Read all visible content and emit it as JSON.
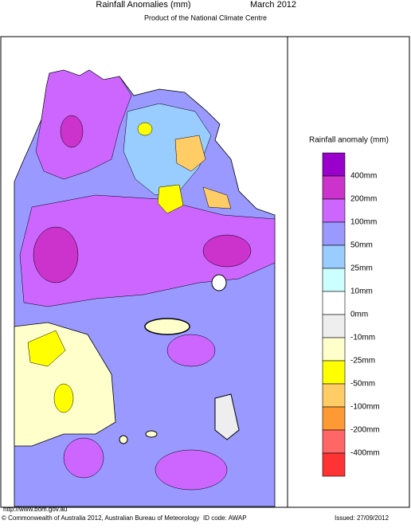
{
  "header": {
    "title": "Rainfall Anomalies (mm)",
    "period": "March 2012",
    "subtitle": "Product of the National Climate Centre"
  },
  "legend": {
    "title": "Rainfall anomaly (mm)",
    "colors": [
      "#9900cc",
      "#cc33cc",
      "#cc66ff",
      "#9999ff",
      "#99ccff",
      "#ccffff",
      "#ffffff",
      "#eeeeee",
      "#ffffcc",
      "#ffff00",
      "#ffcc66",
      "#ff9933",
      "#ff6666",
      "#ff3333"
    ],
    "labels": [
      "400mm",
      "200mm",
      "100mm",
      "50mm",
      "25mm",
      "10mm",
      "0mm",
      "-10mm",
      "-25mm",
      "-50mm",
      "-100mm",
      "-200mm",
      "-400mm"
    ]
  },
  "footer": {
    "url": "http://www.bom.gov.au",
    "copyright": "© Commonwealth of Australia 2012, Australian Bureau of Meteorology",
    "id_code": "ID code: AWAP",
    "issued": "Issued: 27/09/2012"
  }
}
